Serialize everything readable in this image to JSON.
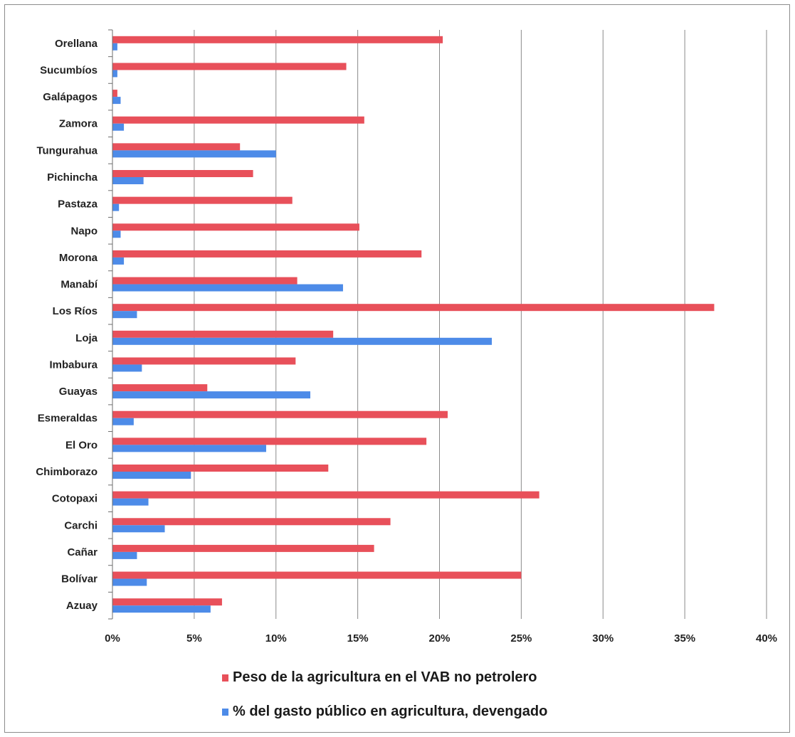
{
  "chart_data": {
    "type": "bar",
    "orientation": "horizontal",
    "title": "",
    "xlabel": "",
    "ylabel": "",
    "xlim": [
      0,
      40
    ],
    "grid": true,
    "legend_position": "bottom",
    "x_ticks": [
      "0%",
      "5%",
      "10%",
      "15%",
      "20%",
      "25%",
      "30%",
      "35%",
      "40%"
    ],
    "categories": [
      "Orellana",
      "Sucumbíos",
      "Galápagos",
      "Zamora",
      "Tungurahua",
      "Pichincha",
      "Pastaza",
      "Napo",
      "Morona",
      "Manabí",
      "Los Ríos",
      "Loja",
      "Imbabura",
      "Guayas",
      "Esmeraldas",
      "El Oro",
      "Chimborazo",
      "Cotopaxi",
      "Carchi",
      "Cañar",
      "Bolívar",
      "Azuay"
    ],
    "series": [
      {
        "name": "Peso de la agricultura en el VAB no petrolero",
        "color": "#e8505a",
        "values": [
          20.2,
          14.3,
          0.3,
          15.4,
          7.8,
          8.6,
          11.0,
          15.1,
          18.9,
          11.3,
          36.8,
          13.5,
          11.2,
          5.8,
          20.5,
          19.2,
          13.2,
          26.1,
          17.0,
          16.0,
          25.0,
          6.7
        ]
      },
      {
        "name": "% del gasto público en agricultura, devengado",
        "color": "#4d8be8",
        "values": [
          0.3,
          0.3,
          0.5,
          0.7,
          10.0,
          1.9,
          0.4,
          0.5,
          0.7,
          14.1,
          1.5,
          23.2,
          1.8,
          12.1,
          1.3,
          9.4,
          4.8,
          2.2,
          3.2,
          1.5,
          2.1,
          6.0
        ]
      }
    ]
  }
}
